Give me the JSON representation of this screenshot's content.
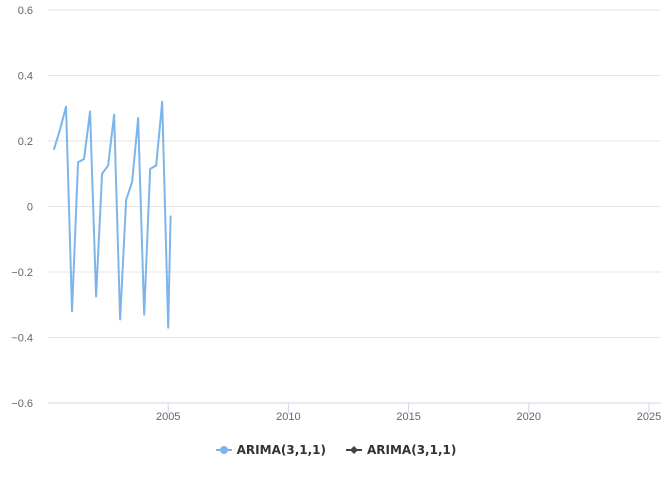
{
  "chart_data": {
    "type": "line",
    "title": "",
    "xlabel": "",
    "ylabel": "",
    "xlim": [
      2000.0,
      2025.5
    ],
    "ylim": [
      -0.6,
      0.6
    ],
    "xticks": [
      2005,
      2010,
      2015,
      2020,
      2025
    ],
    "yticks": [
      -0.6,
      -0.4,
      -0.2,
      0,
      0.2,
      0.4,
      0.6
    ],
    "ytick_labels": [
      "−0.6",
      "−0.4",
      "−0.2",
      "0",
      "0.2",
      "0.4",
      "0.6"
    ],
    "grid": true,
    "legend_position": "bottom-center",
    "series": [
      {
        "name": "ARIMA(3,1,1)",
        "color": "#7cb5ec",
        "x": [
          2000.25,
          2000.5,
          2000.75,
          2001.0,
          2001.25,
          2001.5,
          2001.75,
          2002.0,
          2002.25,
          2002.5,
          2002.75,
          2003.0,
          2003.25,
          2003.5,
          2003.75,
          2004.0,
          2004.25,
          2004.5,
          2004.75,
          2005.0,
          2005.1
        ],
        "y": [
          0.175,
          0.235,
          0.305,
          -0.32,
          0.135,
          0.145,
          0.29,
          -0.275,
          0.1,
          0.125,
          0.28,
          -0.345,
          0.02,
          0.075,
          0.27,
          -0.33,
          0.115,
          0.125,
          0.32,
          -0.37,
          -0.03
        ]
      },
      {
        "name": "ARIMA(3,1,1)",
        "color": "#434348",
        "x": [],
        "y": []
      }
    ]
  }
}
